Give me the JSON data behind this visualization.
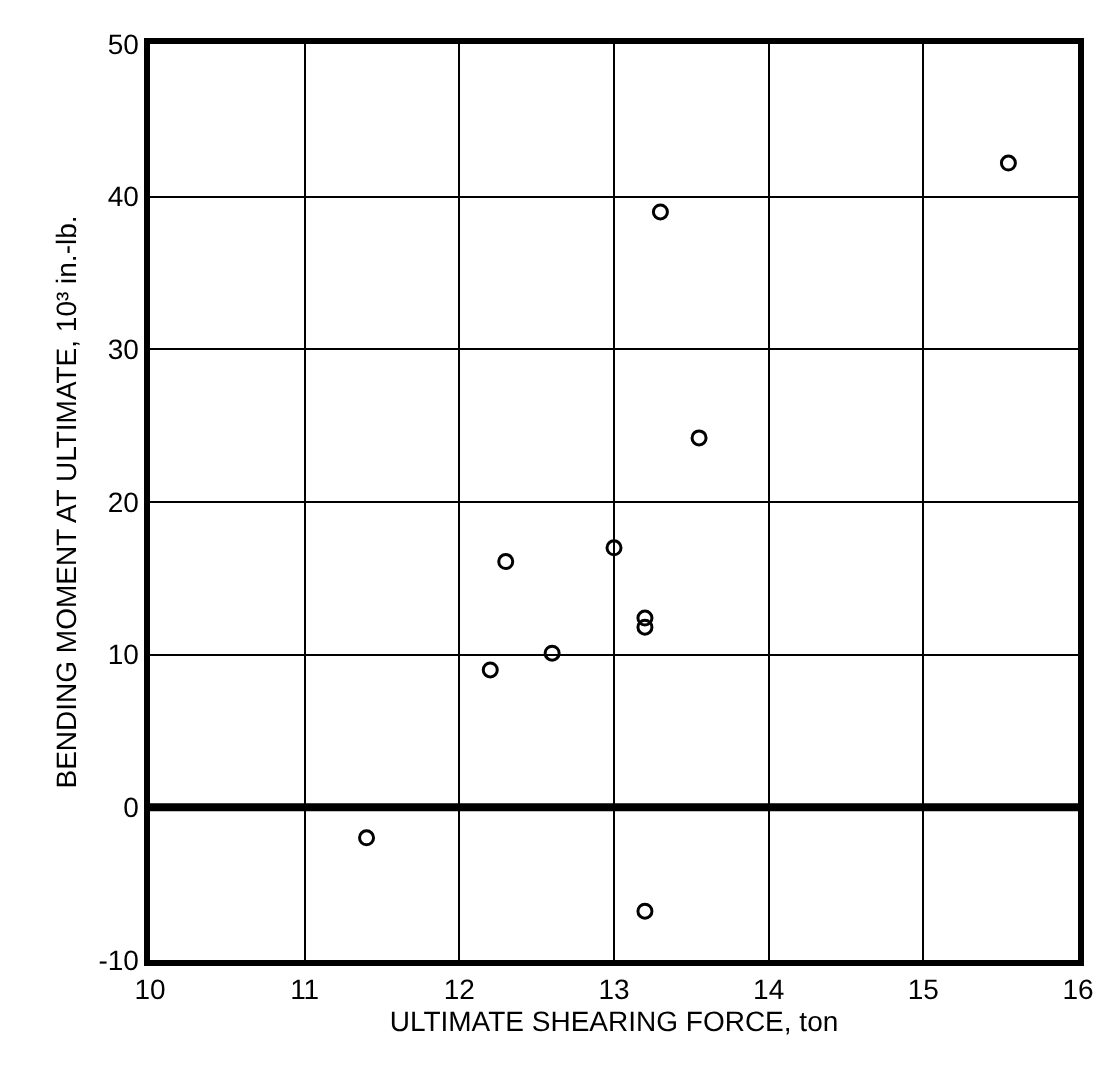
{
  "chart_data": {
    "type": "scatter",
    "xlabel": "ULTIMATE SHEARING FORCE, ton",
    "ylabel": "BENDING MOMENT AT ULTIMATE, 10³ in.-lb.",
    "x": [
      13.3,
      15.55,
      13.55,
      13.0,
      12.3,
      13.2,
      13.2,
      12.6,
      12.2,
      11.4,
      13.2
    ],
    "values": [
      39,
      42.2,
      24.2,
      17,
      16.1,
      12.4,
      11.8,
      10.1,
      9,
      -2,
      -6.8
    ],
    "color": "#000000",
    "marker": "circle",
    "grid": true,
    "xlim": [
      10,
      16
    ],
    "xticks": [
      10,
      11,
      12,
      13,
      14,
      15,
      16
    ],
    "ylim": [
      -10,
      50
    ],
    "yticks": [
      -10,
      0,
      10,
      20,
      30,
      40,
      50
    ],
    "ref_lines": [
      {
        "axis": "y",
        "value": 0,
        "color": "#000000"
      }
    ]
  }
}
